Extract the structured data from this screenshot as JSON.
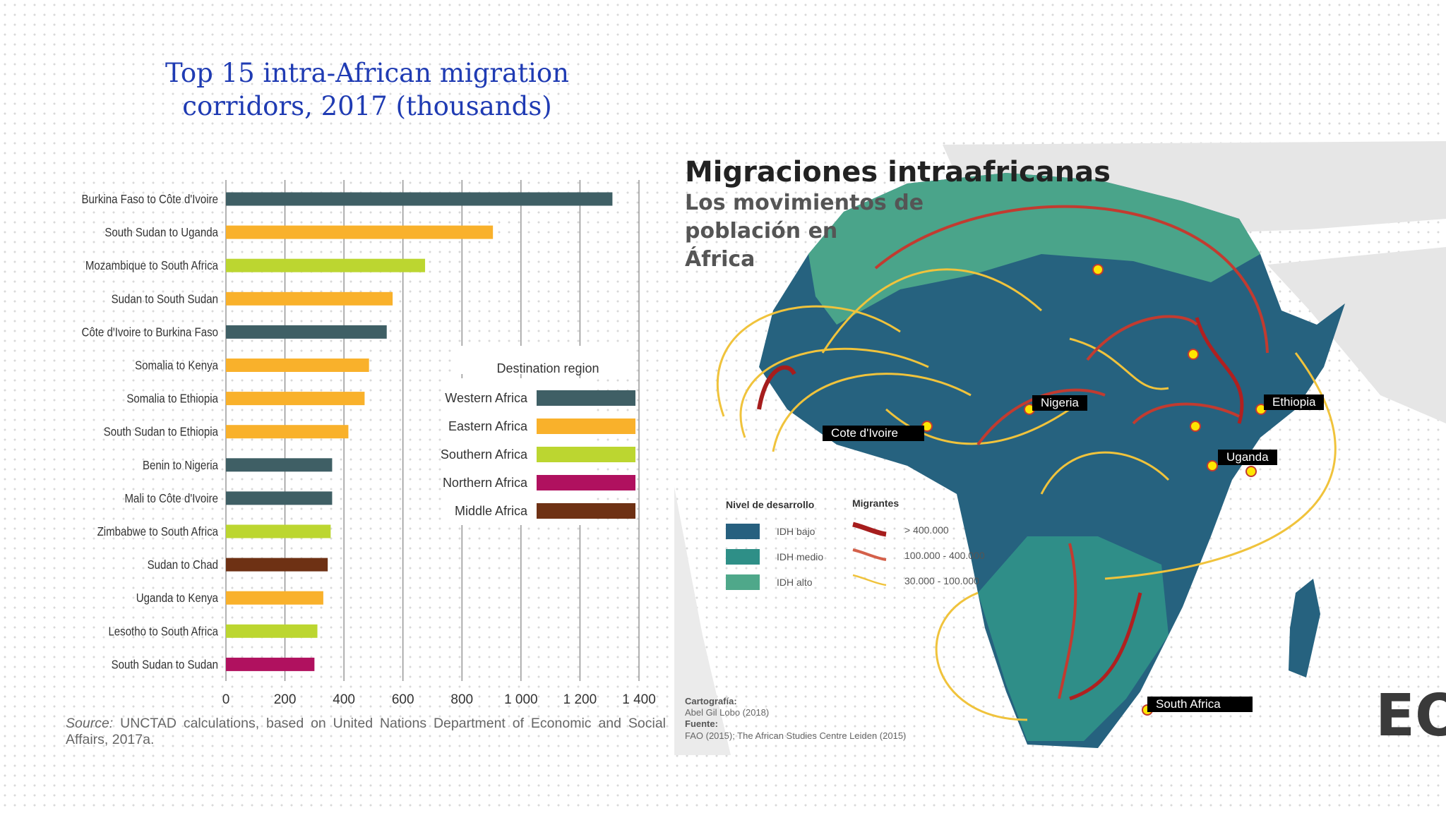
{
  "slide": {
    "title_line1": "Top 15 intra-African migration",
    "title_line2": "corridors, 2017 (thousands)",
    "source_label": "Source:",
    "source_text": "UNCTAD calculations, based on United Nations Department of Economic and Social Affairs, 2017a."
  },
  "chart_data": {
    "type": "bar",
    "orientation": "horizontal",
    "title": "Top 15 intra-African migration corridors, 2017 (thousands)",
    "categories": [
      "Burkina Faso to Côte d'Ivoire",
      "South Sudan to Uganda",
      "Mozambique to South Africa",
      "Sudan to South Sudan",
      "Côte d'Ivoire to Burkina Faso",
      "Somalia to Kenya",
      "Somalia to Ethiopia",
      "South Sudan to Ethiopia",
      "Benin to Nigeria",
      "Mali to Côte d'Ivoire",
      "Zimbabwe to South Africa",
      "Sudan to Chad",
      "Uganda to Kenya",
      "Lesotho to South Africa",
      "South Sudan to Sudan"
    ],
    "values": [
      1310,
      905,
      675,
      565,
      545,
      485,
      470,
      415,
      360,
      360,
      355,
      345,
      330,
      310,
      300
    ],
    "destination_region": [
      "Western Africa",
      "Eastern Africa",
      "Southern Africa",
      "Eastern Africa",
      "Western Africa",
      "Eastern Africa",
      "Eastern Africa",
      "Eastern Africa",
      "Western Africa",
      "Western Africa",
      "Southern Africa",
      "Middle Africa",
      "Eastern Africa",
      "Southern Africa",
      "Northern Africa"
    ],
    "xlim": [
      0,
      1400
    ],
    "xticks": [
      0,
      200,
      400,
      600,
      800,
      1000,
      1200,
      1400
    ],
    "xtick_labels": [
      "0",
      "200",
      "400",
      "600",
      "800",
      "1 000",
      "1 200",
      "1 400"
    ],
    "grid": true,
    "legend_title": "Destination region",
    "legend_position": "center-right",
    "legend": [
      {
        "name": "Western Africa",
        "color": "#3f5f65"
      },
      {
        "name": "Eastern Africa",
        "color": "#f9b12b"
      },
      {
        "name": "Southern Africa",
        "color": "#bcd630"
      },
      {
        "name": "Northern Africa",
        "color": "#b0115f"
      },
      {
        "name": "Middle Africa",
        "color": "#6e3114"
      }
    ]
  },
  "map": {
    "title": "Migraciones intraafricanas",
    "subtitle_line1": "Los movimientos de",
    "subtitle_line2": "población en",
    "subtitle_line3": "África",
    "legend_dev_title": "Nivel de desarrollo",
    "legend_dev": [
      {
        "label": "IDH bajo",
        "color": "#27607f"
      },
      {
        "label": "IDH medio",
        "color": "#2e8f87"
      },
      {
        "label": "IDH alto",
        "color": "#4fa88a"
      }
    ],
    "legend_mig_title": "Migrantes",
    "legend_mig": [
      {
        "label": "> 400.000",
        "color": "#a61d1d"
      },
      {
        "label": "100.000 - 400.000",
        "color": "#d4604a"
      },
      {
        "label": "30.000 - 100.000",
        "color": "#f0c33c"
      }
    ],
    "credit_label1": "Cartografía:",
    "credit_text1": "Abel Gil Lobo (2018)",
    "credit_label2": "Fuente:",
    "credit_text2": "FAO (2015); The African Studies Centre Leiden (2015)",
    "labels": [
      "Nigeria",
      "Ethiopia",
      "Cote d'Ivoire",
      "Uganda",
      "South Africa"
    ]
  },
  "logo_text": "EO"
}
